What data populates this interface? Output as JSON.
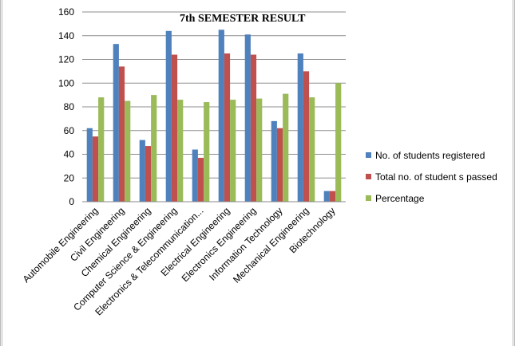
{
  "chart_data": {
    "type": "bar",
    "title": "7th SEMESTER RESULT",
    "categories": [
      "Automobile Engineering",
      "Civil Engineering",
      "Chemical Engineering",
      "Computer Science & Engineering",
      "Electronics & Telecommunication...",
      "Electrical Engineering",
      "Electronics Engineering",
      "Information Technology",
      "Mechanical Engineering",
      "Biotechnology"
    ],
    "series": [
      {
        "name": "No. of students registered",
        "color": "#4f81bd",
        "values": [
          62,
          133,
          52,
          144,
          44,
          145,
          141,
          68,
          125,
          9
        ]
      },
      {
        "name": "Total no. of student s passed",
        "color": "#c0504d",
        "values": [
          55,
          114,
          47,
          124,
          37,
          125,
          124,
          62,
          110,
          9
        ]
      },
      {
        "name": "Percentage",
        "color": "#9bbb59",
        "values": [
          88,
          85,
          90,
          86,
          84,
          86,
          87,
          91,
          88,
          100
        ]
      }
    ],
    "ylim": [
      0,
      160
    ],
    "yticks": [
      0,
      20,
      40,
      60,
      80,
      100,
      120,
      140,
      160
    ],
    "grid": "horizontal",
    "legend_position": "right"
  }
}
